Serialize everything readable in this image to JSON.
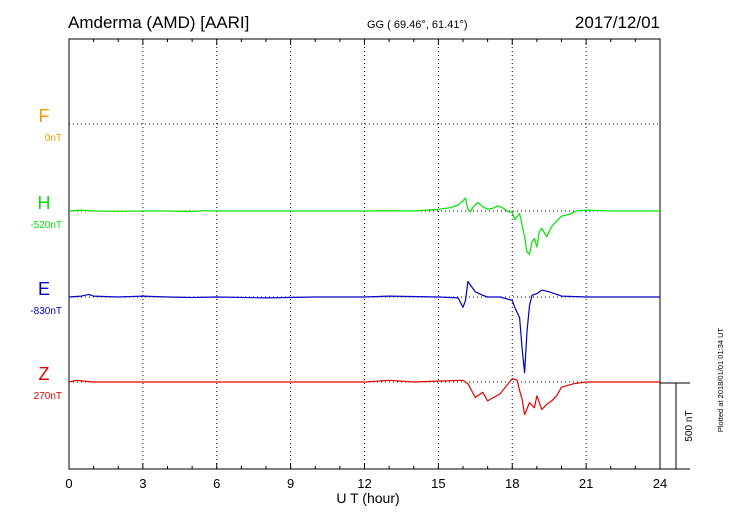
{
  "header": {
    "station": "Amderma (AMD)  [AARI]",
    "coords": "GG ( 69.46°,  61.41°)",
    "date": "2017/12/01"
  },
  "side_note": "Plotted at 2018/01/01 01:34 UT",
  "scale_label": "500 nT",
  "colors": {
    "F": "#ff9900",
    "H": "#00e600",
    "E": "#0000cc",
    "Z": "#e60000",
    "axis": "#000000"
  },
  "chart_data": {
    "type": "line",
    "xlabel": "U T (hour)",
    "xlim": [
      0,
      24
    ],
    "xticks": [
      "0",
      "3",
      "6",
      "9",
      "12",
      "15",
      "18",
      "21",
      "24"
    ],
    "scale_nT": 500,
    "series": [
      {
        "name": "F",
        "offset_label": "0nT",
        "color": "#ff9900",
        "x": [],
        "y": []
      },
      {
        "name": "H",
        "offset_label": "-520nT",
        "color": "#00e600",
        "x": [
          0,
          0.5,
          1,
          2,
          3,
          4,
          5,
          5.5,
          6,
          7,
          8,
          9,
          10,
          11,
          12,
          13,
          14,
          14.5,
          15,
          15.5,
          15.8,
          16.0,
          16.1,
          16.2,
          16.3,
          16.4,
          16.6,
          16.8,
          17.0,
          17.2,
          17.4,
          17.6,
          17.8,
          18.0,
          18.1,
          18.3,
          18.4,
          18.5,
          18.6,
          18.7,
          18.8,
          18.9,
          19.0,
          19.1,
          19.2,
          19.4,
          19.6,
          19.8,
          20.0,
          20.3,
          20.6,
          21,
          22,
          23,
          24
        ],
        "y": [
          0,
          5,
          0,
          -2,
          0,
          0,
          -3,
          2,
          0,
          0,
          0,
          0,
          0,
          0,
          0,
          2,
          0,
          5,
          10,
          20,
          35,
          60,
          75,
          10,
          -5,
          20,
          50,
          25,
          10,
          15,
          30,
          20,
          0,
          -10,
          -50,
          -15,
          -80,
          -150,
          -240,
          -250,
          -180,
          -160,
          -210,
          -120,
          -100,
          -150,
          -90,
          -60,
          -30,
          -20,
          0,
          5,
          0,
          0,
          0
        ]
      },
      {
        "name": "E",
        "offset_label": "-830nT",
        "color": "#0000cc",
        "x": [
          0,
          0.5,
          0.8,
          1,
          2,
          3,
          4,
          5,
          6,
          8,
          10,
          12,
          13,
          15,
          15.8,
          16.0,
          16.1,
          16.2,
          16.3,
          16.5,
          16.8,
          17.0,
          17.5,
          18.0,
          18.1,
          18.3,
          18.4,
          18.5,
          18.6,
          18.7,
          18.8,
          19.0,
          19.2,
          19.5,
          20.0,
          21,
          22,
          23,
          24
        ],
        "y": [
          0,
          5,
          15,
          5,
          0,
          5,
          0,
          -3,
          0,
          -5,
          0,
          0,
          5,
          0,
          -5,
          -60,
          -20,
          90,
          70,
          30,
          10,
          0,
          0,
          -20,
          -60,
          -120,
          -300,
          -440,
          -200,
          -50,
          10,
          20,
          40,
          30,
          5,
          0,
          0,
          0,
          0
        ]
      },
      {
        "name": "Z",
        "offset_label": "270nT",
        "color": "#e60000",
        "x": [
          0,
          0.3,
          0.6,
          1,
          2,
          3,
          4,
          5,
          6,
          8,
          10,
          12,
          13,
          14,
          15,
          16.0,
          16.2,
          16.5,
          16.8,
          17.0,
          17.5,
          18.0,
          18.2,
          18.3,
          18.4,
          18.5,
          18.7,
          18.9,
          19.0,
          19.2,
          19.4,
          19.6,
          19.8,
          20.0,
          20.5,
          21,
          22,
          23,
          24
        ],
        "y": [
          0,
          10,
          5,
          0,
          0,
          0,
          0,
          0,
          0,
          0,
          0,
          0,
          10,
          0,
          5,
          10,
          -10,
          -90,
          -60,
          -110,
          -70,
          20,
          10,
          -50,
          -100,
          -190,
          -120,
          -150,
          -80,
          -160,
          -130,
          -110,
          -80,
          -30,
          -10,
          0,
          0,
          0,
          0
        ]
      }
    ]
  }
}
